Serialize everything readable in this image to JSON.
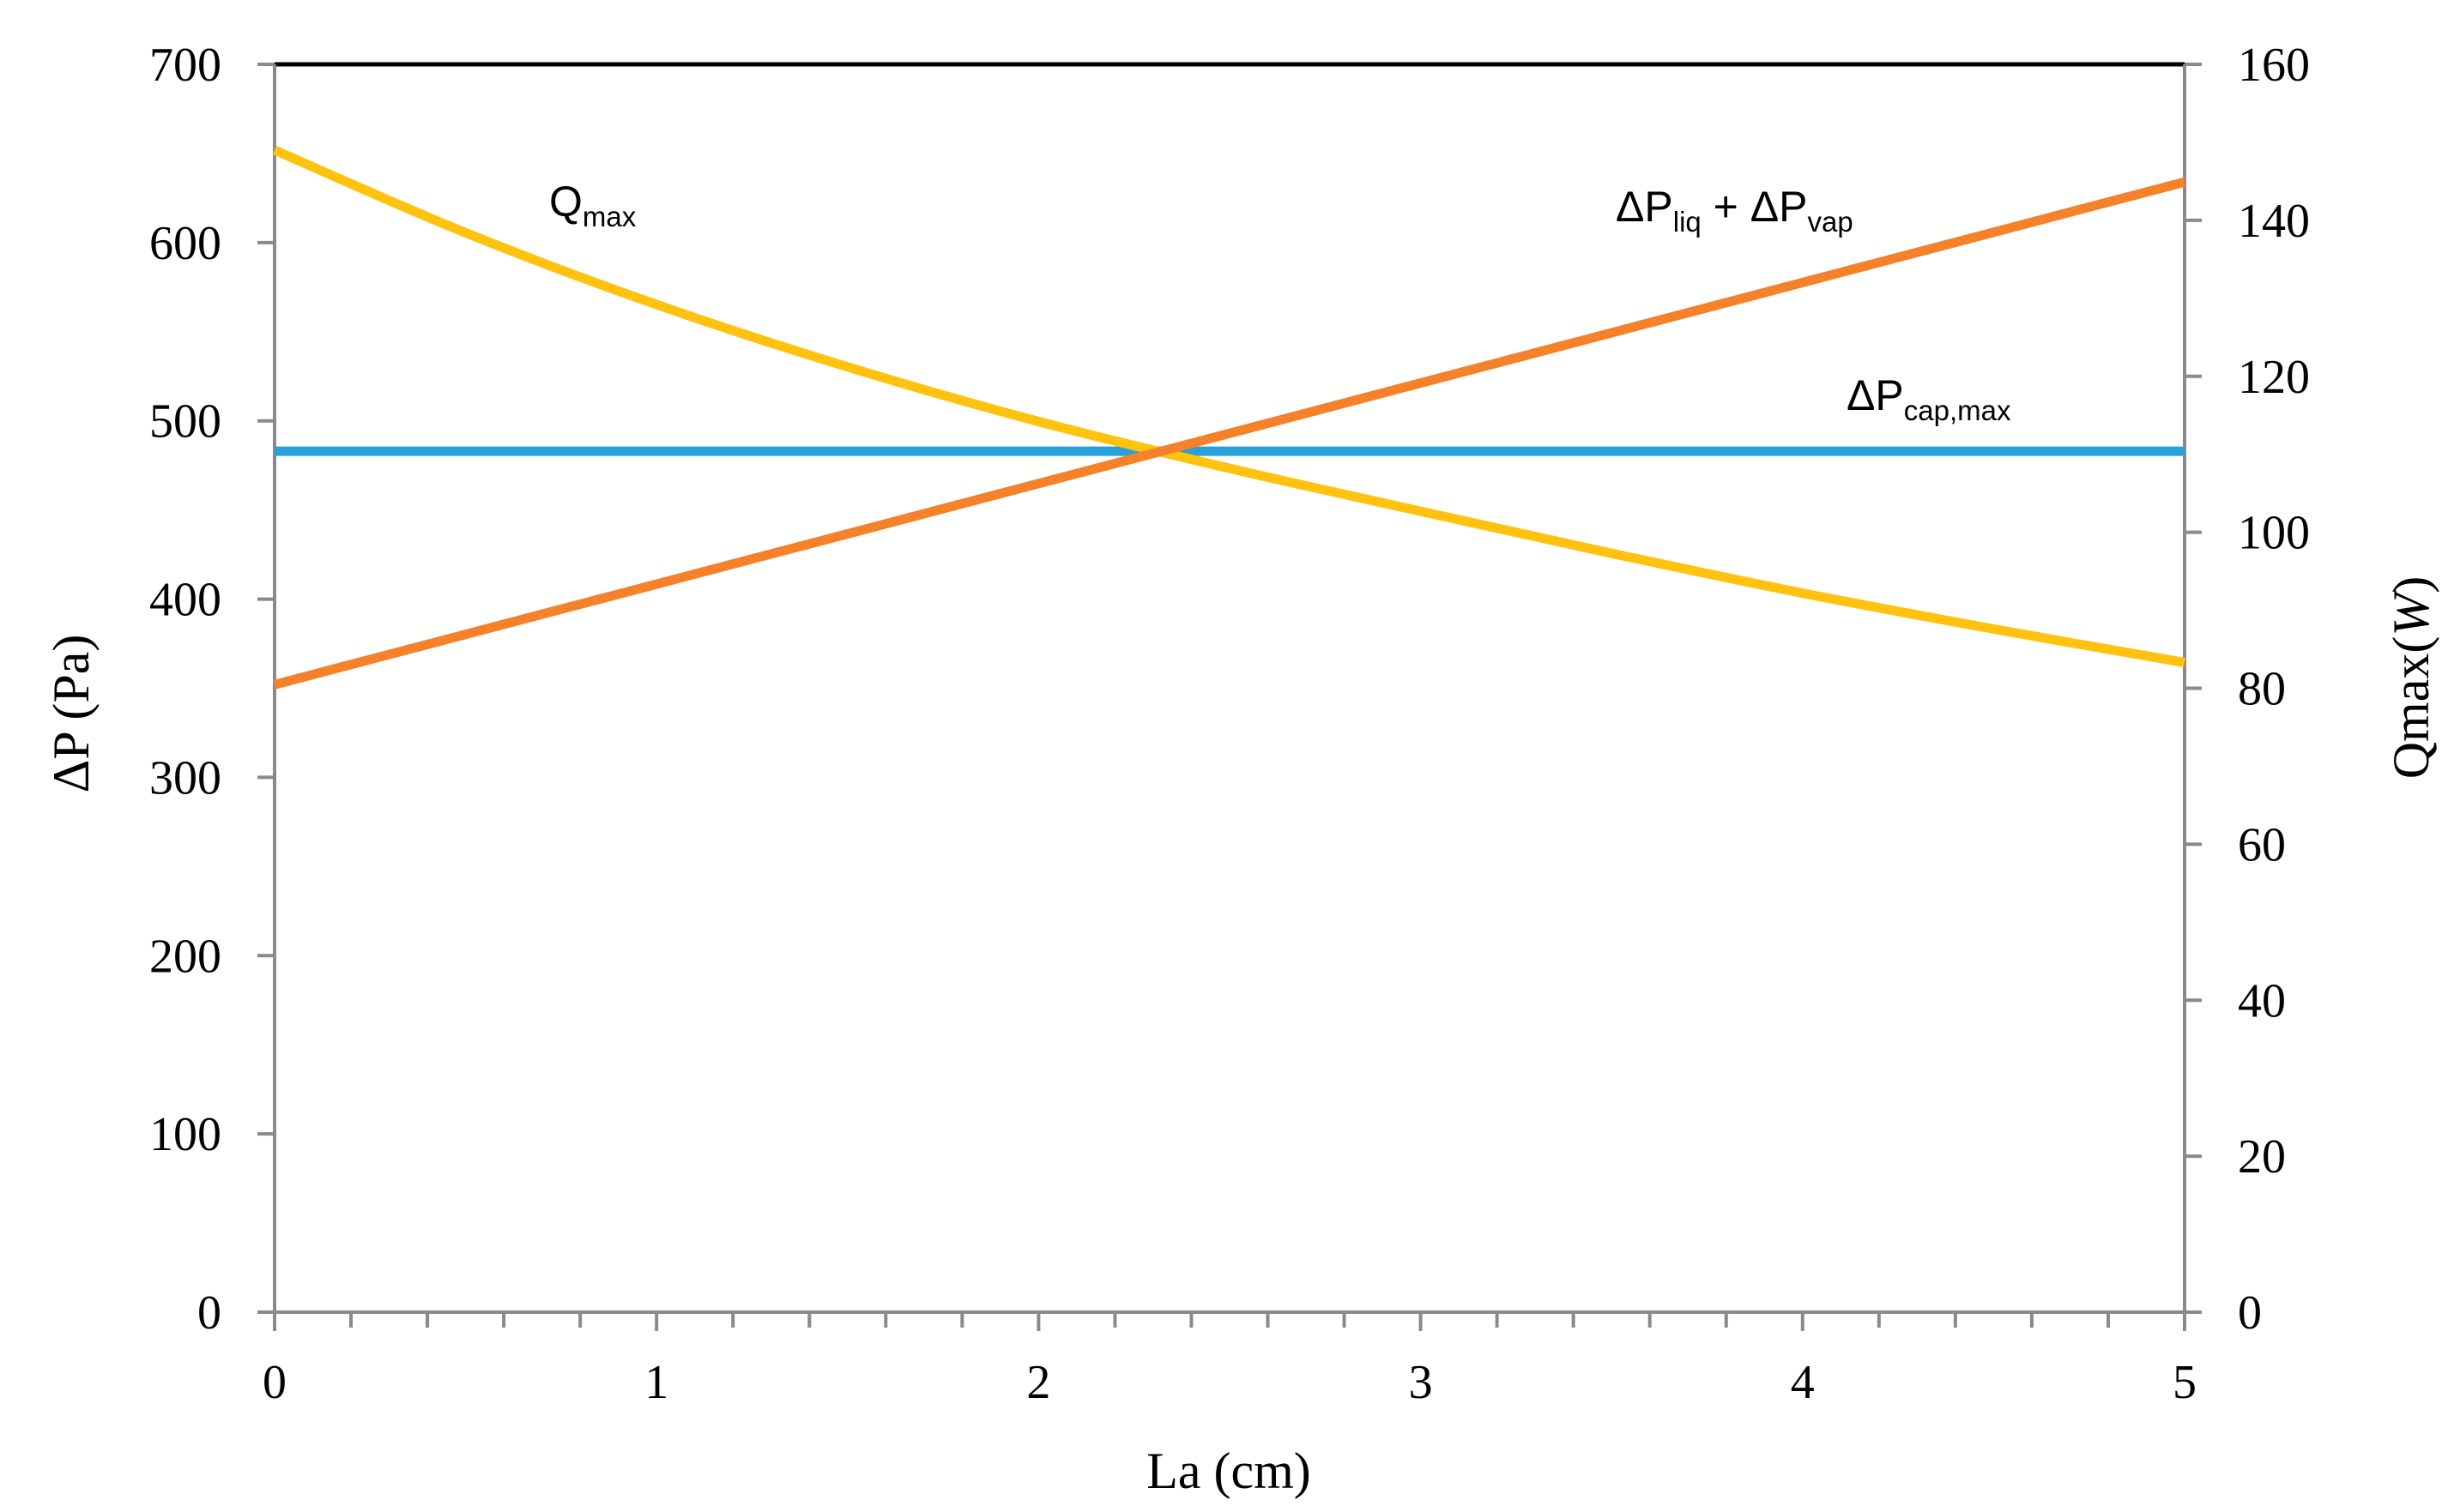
{
  "chart_data": {
    "type": "line",
    "title": "",
    "xlabel": "La (cm)",
    "ylabel_left": "ΔP (Pa)",
    "ylabel_right_main": "Qmax(",
    "ylabel_right_unit": "W",
    "ylabel_right_close": ")",
    "xlim": [
      0,
      5
    ],
    "ylim_left": [
      0,
      700
    ],
    "ylim_right": [
      0,
      160
    ],
    "x_ticks": [
      "0",
      "1",
      "2",
      "3",
      "4",
      "5"
    ],
    "y_left_ticks": [
      "0",
      "100",
      "200",
      "300",
      "400",
      "500",
      "600",
      "700"
    ],
    "y_right_ticks": [
      "0",
      "20",
      "40",
      "60",
      "80",
      "100",
      "120",
      "140",
      "160"
    ],
    "grid": false,
    "legend": "none",
    "series": [
      {
        "key": "qmax",
        "axis": "right",
        "color": "#FFC20E",
        "x": [
          0,
          0.5,
          1,
          1.5,
          2,
          2.5,
          3,
          3.5,
          4,
          4.5,
          5
        ],
        "y": [
          149,
          138.4,
          129.2,
          121.2,
          114.2,
          108.2,
          102.7,
          97.3,
          92.2,
          87.6,
          83.3
        ]
      },
      {
        "key": "dp_liq_vap",
        "axis": "left",
        "color": "#F5822A",
        "x": [
          0,
          5
        ],
        "y": [
          352,
          634
        ]
      },
      {
        "key": "dp_cap_max",
        "axis": "left",
        "color": "#2AA0D8",
        "x": [
          0,
          5
        ],
        "y": [
          483,
          483
        ]
      }
    ],
    "annotations": {
      "qmax": {
        "main": "Q",
        "sub": "max"
      },
      "dp_liq_vap": {
        "d1": "ΔP",
        "sub1": "liq",
        "plus": " + ",
        "d2": "ΔP",
        "sub2": "vap"
      },
      "dp_cap_max": {
        "main": "ΔP",
        "sub": "cap,max"
      }
    }
  }
}
